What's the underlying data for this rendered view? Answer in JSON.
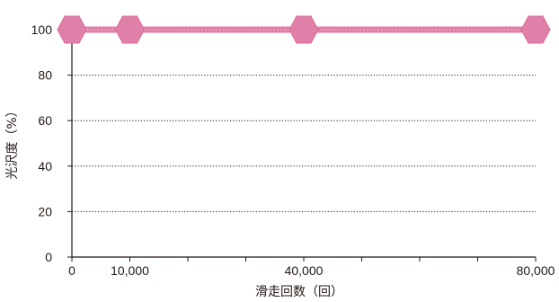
{
  "chart_data": {
    "type": "line",
    "xlabel": "滑走回数（回）",
    "ylabel": "光沢度（%）",
    "x_ticks": [
      0,
      10000,
      40000,
      80000
    ],
    "x_tick_labels": [
      "0",
      "10,000",
      "40,000",
      "80,000"
    ],
    "x_minor_ticks": [
      20000,
      30000,
      50000,
      60000,
      70000
    ],
    "y_ticks": [
      0,
      20,
      40,
      60,
      80,
      100
    ],
    "y_tick_labels": [
      "0",
      "20",
      "40",
      "60",
      "80",
      "100"
    ],
    "xlim": [
      0,
      80000
    ],
    "ylim": [
      0,
      100
    ],
    "grid": "horizontal-dotted",
    "series": [
      {
        "x": [
          0,
          10000,
          40000,
          80000
        ],
        "values": [
          100,
          100,
          100,
          100
        ],
        "color": "#e07fa8",
        "marker": "hexagon"
      }
    ]
  },
  "colors": {
    "background": "#ffffff",
    "plot_background": "#ffffff",
    "axis": "#231815",
    "grid": "#231815",
    "series": "#e07fa8"
  }
}
